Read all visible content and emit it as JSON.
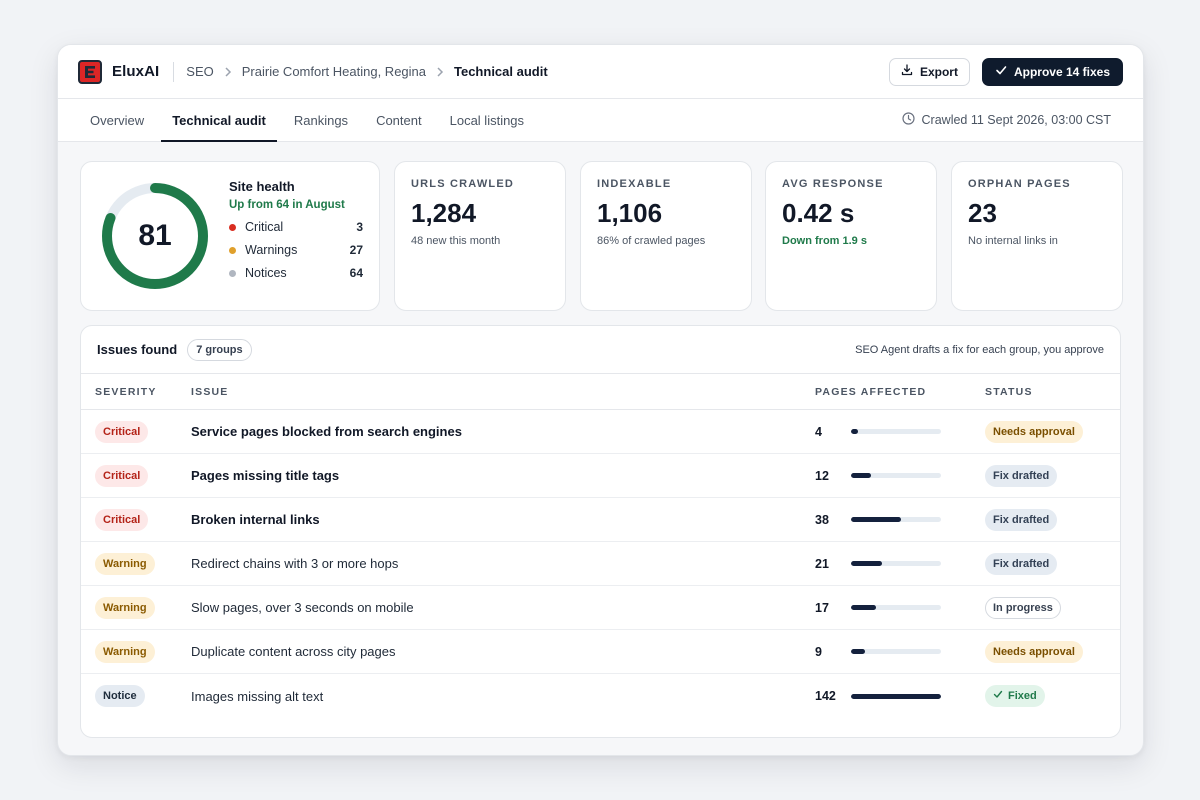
{
  "header": {
    "brand": "EluxAI",
    "logo_letter": "E",
    "breadcrumb": [
      "SEO",
      "Prairie Comfort Heating, Regina",
      "Technical audit"
    ],
    "export_label": "Export",
    "approve_label": "Approve 14 fixes"
  },
  "tabs": [
    "Overview",
    "Technical audit",
    "Rankings",
    "Content",
    "Local listings"
  ],
  "active_tab": "Technical audit",
  "crawled": "Crawled 11 Sept 2026, 03:00 CST",
  "health": {
    "score": "81",
    "score_fraction": 0.81,
    "title": "Site health",
    "subtitle": "Up from 64 in August",
    "critical_label": "Critical",
    "critical_count": "3",
    "warnings_label": "Warnings",
    "warnings_count": "27",
    "notices_label": "Notices",
    "notices_count": "64"
  },
  "stats": [
    {
      "label": "URLS CRAWLED",
      "value": "1,284",
      "sub": "48 new this month"
    },
    {
      "label": "INDEXABLE",
      "value": "1,106",
      "sub": "86% of crawled pages"
    },
    {
      "label": "AVG RESPONSE",
      "value": "0.42 s",
      "sub": "Down from 1.9 s"
    },
    {
      "label": "ORPHAN PAGES",
      "value": "23",
      "sub": "No internal links in"
    }
  ],
  "issues": {
    "title": "Issues found",
    "groups": "7 groups",
    "note": "SEO Agent drafts a fix for each group, you approve",
    "columns": [
      "SEVERITY",
      "ISSUE",
      "PAGES AFFECTED",
      "STATUS"
    ],
    "rows": [
      {
        "severity": "Critical",
        "issue": "Service pages blocked from search engines",
        "pages": "4",
        "bar_fraction": 0.08,
        "status": "Needs approval"
      },
      {
        "severity": "Critical",
        "issue": "Pages missing title tags",
        "pages": "12",
        "bar_fraction": 0.22,
        "status": "Fix drafted"
      },
      {
        "severity": "Critical",
        "issue": "Broken internal links",
        "pages": "38",
        "bar_fraction": 0.56,
        "status": "Fix drafted"
      },
      {
        "severity": "Warning",
        "issue": "Redirect chains with 3 or more hops",
        "pages": "21",
        "bar_fraction": 0.34,
        "status": "Fix drafted"
      },
      {
        "severity": "Warning",
        "issue": "Slow pages, over 3 seconds on mobile",
        "pages": "17",
        "bar_fraction": 0.28,
        "status": "In progress"
      },
      {
        "severity": "Warning",
        "issue": "Duplicate content across city pages",
        "pages": "9",
        "bar_fraction": 0.15,
        "status": "Needs approval"
      },
      {
        "severity": "Notice",
        "issue": "Images missing alt text",
        "pages": "142",
        "bar_fraction": 1.0,
        "status": "Fixed"
      }
    ]
  },
  "colors": {
    "ring": "#1f7a4a",
    "ring_track": "#e5ebf1",
    "critical_dot": "#d92d20",
    "warning_dot": "#e0a02c",
    "notice_dot": "#b0b6c0"
  }
}
